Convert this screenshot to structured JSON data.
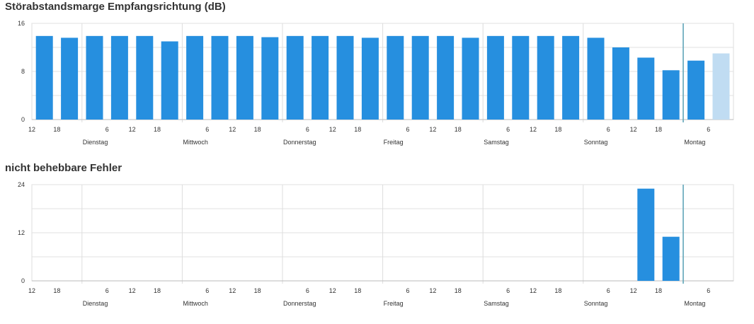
{
  "chart_data": [
    {
      "type": "bar",
      "title": "Störabstandsmarge Empfangsrichtung (dB)",
      "ylim": [
        0,
        16
      ],
      "yticks": [
        0,
        8,
        16
      ],
      "grid": true,
      "x_hour_labels": [
        "12",
        "18",
        "6",
        "12",
        "18",
        "6",
        "12",
        "18",
        "6",
        "12",
        "18",
        "6",
        "12",
        "18",
        "6",
        "12",
        "18",
        "6",
        "12",
        "18",
        "6"
      ],
      "day_labels": [
        "Dienstag",
        "Mittwoch",
        "Donnerstag",
        "Freitag",
        "Samstag",
        "Sonntag",
        "Montag"
      ],
      "values": [
        13.9,
        13.6,
        13.9,
        13.9,
        13.9,
        13.0,
        13.9,
        13.9,
        13.9,
        13.7,
        13.9,
        13.9,
        13.9,
        13.6,
        13.9,
        13.9,
        13.9,
        13.6,
        13.9,
        13.9,
        13.9,
        13.9,
        13.6,
        12.0,
        10.3,
        8.2,
        9.8,
        11.0
      ],
      "highlight_last": true,
      "bar_color": "#268fdf",
      "highlight_color": "#c0dcf2"
    },
    {
      "type": "bar",
      "title": "nicht behebbare Fehler",
      "ylim": [
        0,
        24
      ],
      "yticks": [
        0,
        12,
        24
      ],
      "grid": true,
      "x_hour_labels": [
        "12",
        "18",
        "6",
        "12",
        "18",
        "6",
        "12",
        "18",
        "6",
        "12",
        "18",
        "6",
        "12",
        "18",
        "6",
        "12",
        "18",
        "6",
        "12",
        "18",
        "6"
      ],
      "day_labels": [
        "Dienstag",
        "Mittwoch",
        "Donnerstag",
        "Freitag",
        "Samstag",
        "Sonntag",
        "Montag"
      ],
      "values": [
        0,
        0,
        0,
        0,
        0,
        0,
        0,
        0,
        0,
        0,
        0,
        0,
        0,
        0,
        0,
        0,
        0,
        0,
        0,
        0,
        0,
        0,
        0,
        0,
        23,
        11,
        0,
        0
      ],
      "highlight_last": false,
      "bar_color": "#268fdf",
      "highlight_color": "#c0dcf2"
    }
  ]
}
